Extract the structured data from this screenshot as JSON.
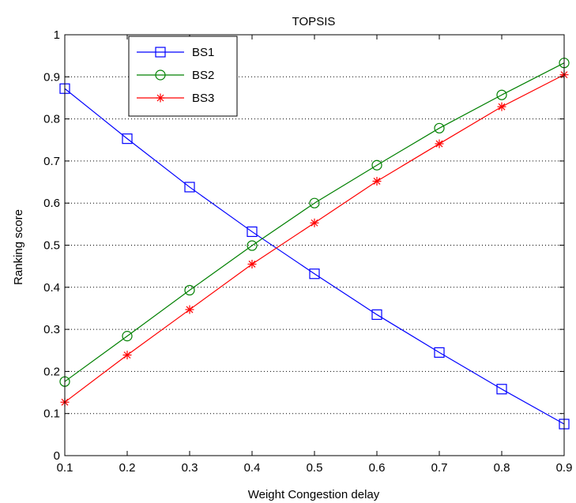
{
  "chart_data": {
    "type": "line",
    "title": "TOPSIS",
    "xlabel": "Weight Congestion delay",
    "ylabel": "Ranking score",
    "xlim": [
      0.1,
      0.9
    ],
    "ylim": [
      0,
      1
    ],
    "x": [
      0.1,
      0.2,
      0.3,
      0.4,
      0.5,
      0.6,
      0.7,
      0.8,
      0.9
    ],
    "xticks": [
      "0.1",
      "0.2",
      "0.3",
      "0.4",
      "0.5",
      "0.6",
      "0.7",
      "0.8",
      "0.9"
    ],
    "yticks": [
      "0",
      "0.1",
      "0.2",
      "0.3",
      "0.4",
      "0.5",
      "0.6",
      "0.7",
      "0.8",
      "0.9",
      "1"
    ],
    "grid": "horizontal dotted",
    "legend_position": "top-left",
    "series": [
      {
        "name": "BS1",
        "color": "#0000ff",
        "marker": "square",
        "values": [
          0.872,
          0.753,
          0.638,
          0.532,
          0.432,
          0.335,
          0.245,
          0.158,
          0.075
        ]
      },
      {
        "name": "BS2",
        "color": "#008000",
        "marker": "circle",
        "values": [
          0.176,
          0.284,
          0.393,
          0.499,
          0.6,
          0.69,
          0.778,
          0.857,
          0.933
        ]
      },
      {
        "name": "BS3",
        "color": "#ff0000",
        "marker": "asterisk",
        "values": [
          0.127,
          0.239,
          0.347,
          0.455,
          0.553,
          0.652,
          0.741,
          0.829,
          0.905
        ]
      }
    ]
  }
}
